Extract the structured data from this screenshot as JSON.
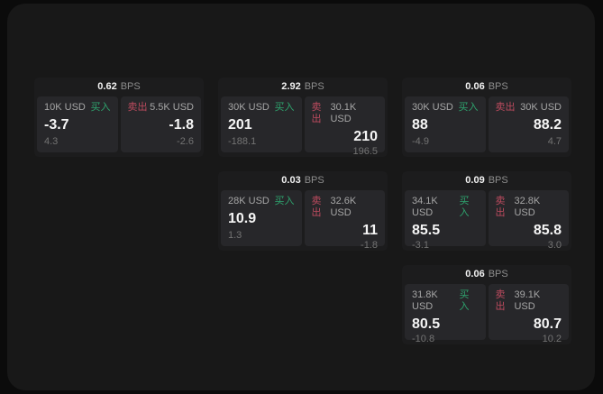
{
  "labels": {
    "bps_unit": "BPS",
    "buy": "买入",
    "sell": "卖出"
  },
  "colors": {
    "buy_green": "#2ea46e",
    "sell_red": "#bd4b5f",
    "page_background": "#0b0b0b",
    "window_background": "#181818",
    "card_background": "#1c1c1d",
    "panel_background": "#27272a"
  },
  "cards": [
    {
      "bps": "0.62",
      "buy": {
        "amount": "10K USD",
        "value": "-3.7",
        "sub": "4.3"
      },
      "sell": {
        "amount": "5.5K USD",
        "value": "-1.8",
        "sub": "-2.6"
      }
    },
    {
      "bps": "2.92",
      "buy": {
        "amount": "30K USD",
        "value": "201",
        "sub": "-188.1"
      },
      "sell": {
        "amount": "30.1K USD",
        "value": "210",
        "sub": "196.5"
      }
    },
    {
      "bps": "0.06",
      "buy": {
        "amount": "30K USD",
        "value": "88",
        "sub": "-4.9"
      },
      "sell": {
        "amount": "30K USD",
        "value": "88.2",
        "sub": "4.7"
      }
    },
    {
      "bps": "0.03",
      "buy": {
        "amount": "28K USD",
        "value": "10.9",
        "sub": "1.3"
      },
      "sell": {
        "amount": "32.6K USD",
        "value": "11",
        "sub": "-1.8"
      }
    },
    {
      "bps": "0.09",
      "buy": {
        "amount": "34.1K USD",
        "value": "85.5",
        "sub": "-3.1"
      },
      "sell": {
        "amount": "32.8K USD",
        "value": "85.8",
        "sub": "3.0"
      }
    },
    {
      "bps": "0.06",
      "buy": {
        "amount": "31.8K USD",
        "value": "80.5",
        "sub": "-10.8"
      },
      "sell": {
        "amount": "39.1K USD",
        "value": "80.7",
        "sub": "10.2"
      }
    }
  ]
}
